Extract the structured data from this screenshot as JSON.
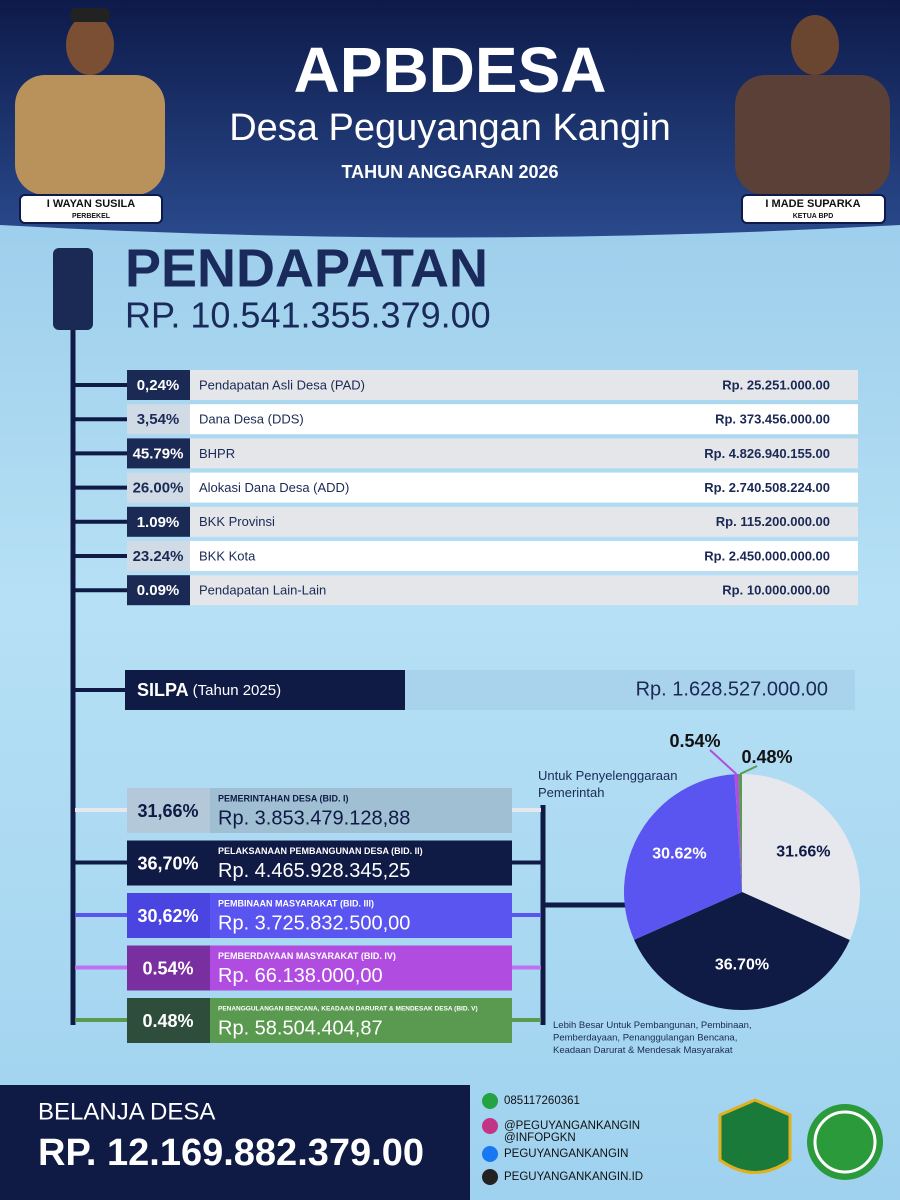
{
  "header": {
    "title": "APBDESA",
    "subtitle": "Desa Peguyangan Kangin",
    "year": "TAHUN ANGGARAN 2026",
    "left_person": {
      "name": "I WAYAN SUSILA",
      "role": "PERBEKEL"
    },
    "right_person": {
      "name": "I MADE SUPARKA",
      "role": "KETUA BPD"
    }
  },
  "pendapatan": {
    "title": "PENDAPATAN",
    "total": "RP. 10.541.355.379.00",
    "rows": [
      [
        "0,24%",
        "Pendapatan Asli Desa (PAD)",
        "Rp. 25.251.000.00"
      ],
      [
        "3,54%",
        "Dana Desa (DDS)",
        "Rp. 373.456.000.00"
      ],
      [
        "45.79%",
        "BHPR",
        "Rp. 4.826.940.155.00"
      ],
      [
        "26.00%",
        "Alokasi Dana Desa (ADD)",
        "Rp. 2.740.508.224.00"
      ],
      [
        "1.09%",
        "BKK Provinsi",
        "Rp. 115.200.000.00"
      ],
      [
        "23.24%",
        "BKK Kota",
        "Rp. 2.450.000.000.00"
      ],
      [
        "0.09%",
        "Pendapatan Lain-Lain",
        "Rp. 10.000.000.00"
      ]
    ]
  },
  "silpa": {
    "label": "SILPA",
    "year": "(Tahun 2025)",
    "amount": "Rp. 1.628.527.000.00"
  },
  "belanja": {
    "items": [
      {
        "pct": "31,66%",
        "name": "PEMERINTAHAN DESA (BID. I)",
        "amount": "Rp. 3.853.479.128,88"
      },
      {
        "pct": "36,70%",
        "name": "PELAKSANAAN PEMBANGUNAN DESA (BID. II)",
        "amount": "Rp. 4.465.928.345,25"
      },
      {
        "pct": "30,62%",
        "name": "PEMBINAAN MASYARAKAT (BID. III)",
        "amount": "Rp. 3.725.832.500,00"
      },
      {
        "pct": "0.54%",
        "name": "PEMBERDAYAAN MASYARAKAT (BID. IV)",
        "amount": "Rp. 66.138.000,00"
      },
      {
        "pct": "0.48%",
        "name": "PENANGGULANGAN BENCANA, KEADAAN DARURAT & MENDESAK DESA (BID. V)",
        "amount": "Rp. 58.504.404,87"
      }
    ],
    "total_label": "BELANJA DESA",
    "total": "RP. 12.169.882.379.00"
  },
  "chart_data": {
    "type": "pie",
    "values": [
      31.66,
      36.7,
      30.62,
      0.54,
      0.48
    ],
    "value_labels": [
      "31.66%",
      "36.70%",
      "30.62%",
      "0.54%",
      "0.48%"
    ],
    "colors": [
      "#e6e8ee",
      "#0f1a45",
      "#5a55f0",
      "#b04de0",
      "#5a9a50"
    ],
    "annotations": [
      "Untuk Penyelenggaraan Pemerintah",
      "Lebih Besar Untuk Pembangunan, Pembinaan, Pemberdayaan, Penanggulangan Bencana, Keadaan Darurat & Mendesak Masyarakat"
    ]
  },
  "footer": {
    "contacts": [
      "085117260361",
      "@PEGUYANGANKANGIN",
      "@INFOPGKN",
      "PEGUYANGANKANGIN",
      "PEGUYANGANKANGIN.ID"
    ]
  }
}
